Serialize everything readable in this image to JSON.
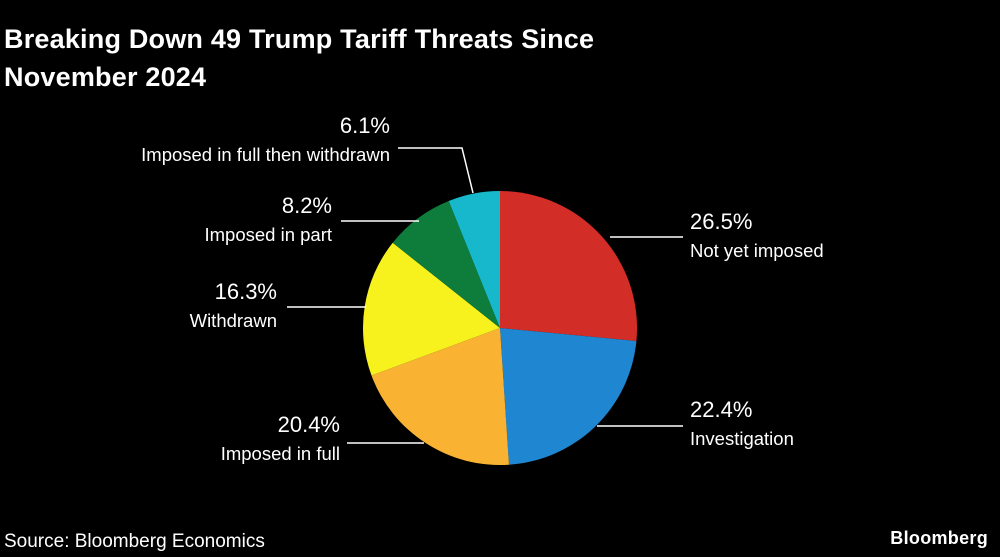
{
  "header": {
    "title_lines": [
      "Breaking Down 49 Trump Tariff Threats Since",
      "November 2024"
    ]
  },
  "chart_data": {
    "type": "pie",
    "title": "Breaking Down 49 Trump Tariff Threats Since November 2024",
    "count_total": 49,
    "unit": "%",
    "start_angle_deg": -90,
    "direction": "clockwise",
    "background_color": "#000000",
    "text_color": "#ffffff",
    "slices": [
      {
        "label": "Not yet imposed",
        "value": 26.5,
        "pct_label": "26.5%",
        "color": "#d22d26"
      },
      {
        "label": "Investigation",
        "value": 22.4,
        "pct_label": "22.4%",
        "color": "#1f86d1"
      },
      {
        "label": "Imposed in full",
        "value": 20.4,
        "pct_label": "20.4%",
        "color": "#f9b232"
      },
      {
        "label": "Withdrawn",
        "value": 16.3,
        "pct_label": "16.3%",
        "color": "#f7f21e"
      },
      {
        "label": "Imposed in part",
        "value": 8.2,
        "pct_label": "8.2%",
        "color": "#0e7d3b"
      },
      {
        "label": "Imposed in full then withdrawn",
        "value": 6.1,
        "pct_label": "6.1%",
        "color": "#17b8cc"
      }
    ]
  },
  "footer": {
    "source": "Source: Bloomberg Economics",
    "brand": "Bloomberg"
  }
}
